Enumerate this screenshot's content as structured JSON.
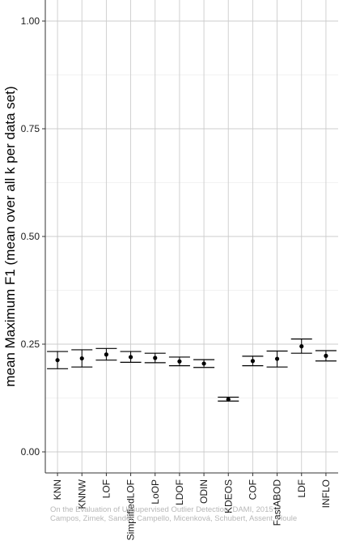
{
  "chart_data": {
    "type": "errorbar",
    "categories": [
      "KNN",
      "KNNW",
      "LOF",
      "SimplifiedLOF",
      "LoOP",
      "LDOF",
      "ODIN",
      "KDEOS",
      "COF",
      "FastABOD",
      "LDF",
      "INFLO"
    ],
    "means": [
      0.213,
      0.217,
      0.226,
      0.22,
      0.218,
      0.21,
      0.205,
      0.122,
      0.211,
      0.216,
      0.245,
      0.223
    ],
    "lower": [
      0.193,
      0.197,
      0.213,
      0.208,
      0.207,
      0.2,
      0.196,
      0.118,
      0.2,
      0.197,
      0.229,
      0.211
    ],
    "upper": [
      0.233,
      0.237,
      0.24,
      0.233,
      0.229,
      0.22,
      0.214,
      0.127,
      0.222,
      0.234,
      0.262,
      0.235
    ],
    "ylabel": "mean Maximum F1 (mean over all k per data set)",
    "ylim": [
      -0.05,
      1.05
    ],
    "yticks": [
      0.0,
      0.25,
      0.5,
      0.75,
      1.0
    ],
    "ytick_labels": [
      "0.00",
      "0.25",
      "0.50",
      "0.75",
      "1.00"
    ],
    "grid": true,
    "colors": {
      "points": "#000000",
      "grid_major": "#cccccc",
      "grid_minor": "#e6e6e6",
      "axis": "#333333"
    }
  },
  "watermark": {
    "line1": "On the Evaluation of Unsupervised Outlier Detection, DAMI, 2015",
    "line2": "Campos, Zimek, Sander, Campello, Micenková, Schubert, Assent, Houle"
  }
}
